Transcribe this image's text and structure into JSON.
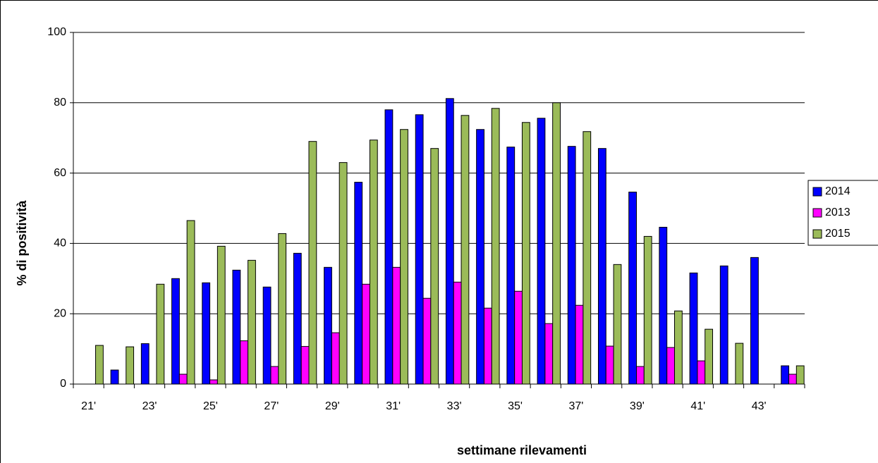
{
  "chart_data": {
    "type": "bar",
    "x_label": "settimane rilevamenti",
    "y_label": "% di positività",
    "categories": [
      "21'",
      null,
      "23'",
      null,
      "25'",
      null,
      "27'",
      null,
      "29'",
      null,
      "31'",
      null,
      "33'",
      null,
      "35'",
      null,
      "37'",
      null,
      "39'",
      null,
      "41'",
      null,
      "43'",
      null
    ],
    "series": [
      {
        "name": "2014",
        "color": "#0000ff",
        "values": [
          null,
          4,
          11.5,
          30,
          28.8,
          32.4,
          27.6,
          37.2,
          33.2,
          57.4,
          78,
          76.6,
          81.2,
          72.4,
          67.4,
          75.6,
          67.6,
          67,
          54.6,
          44.6,
          31.6,
          33.6,
          36,
          5.2
        ]
      },
      {
        "name": "2013",
        "color": "#ff00ff",
        "values": [
          null,
          null,
          null,
          2.8,
          1.2,
          12.3,
          5,
          10.7,
          14.6,
          28.4,
          33.2,
          24.4,
          29,
          21.6,
          26.4,
          17.2,
          22.4,
          10.8,
          5,
          10.4,
          6.6,
          null,
          null,
          2.8
        ]
      },
      {
        "name": "2015",
        "color": "#9bbb59",
        "values": [
          11,
          10.6,
          28.4,
          46.5,
          39.2,
          35.2,
          42.8,
          69,
          63,
          69.4,
          72.4,
          67,
          76.4,
          78.4,
          74.4,
          80,
          71.8,
          34,
          42,
          20.8,
          15.6,
          11.6,
          null,
          5.2
        ]
      }
    ],
    "ylim": [
      0,
      100
    ],
    "yticks": [
      0,
      20,
      40,
      60,
      80,
      100
    ],
    "grid": true,
    "legend": "right"
  }
}
